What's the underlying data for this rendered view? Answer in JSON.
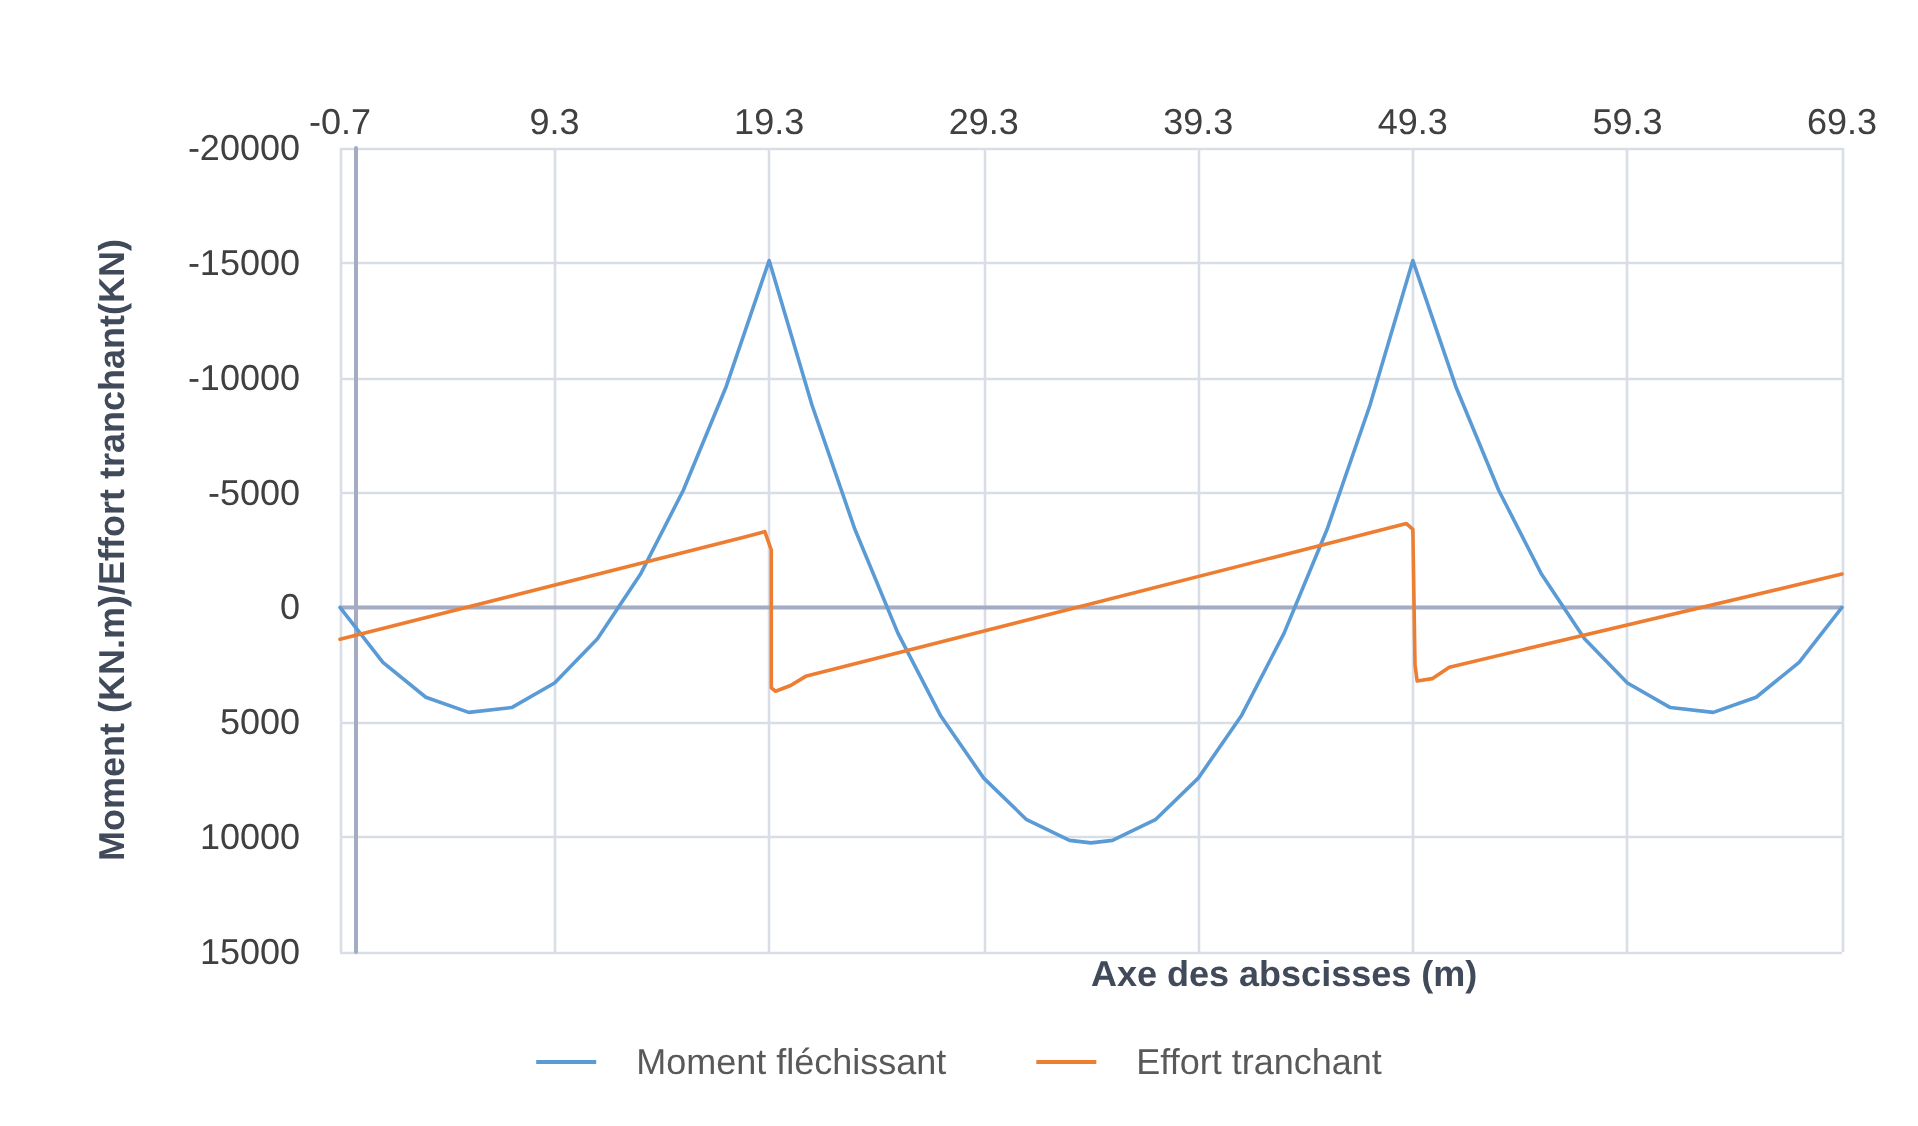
{
  "chart_data": {
    "type": "line",
    "xlabel": "Axe des abscisses (m)",
    "ylabel": "Moment (KN.m)/Effort tranchant(KN)",
    "xlim": [
      -0.7,
      69.3
    ],
    "xticks": [
      -0.7,
      9.3,
      19.3,
      29.3,
      39.3,
      49.3,
      59.3,
      69.3
    ],
    "ylim": [
      15000,
      -20000
    ],
    "yticks": [
      -20000,
      -15000,
      -10000,
      -5000,
      0,
      5000,
      10000,
      15000
    ],
    "grid": true,
    "legend": "bottom",
    "marker": "none",
    "line_style": "solid",
    "series": [
      {
        "name": "Moment fléchissant",
        "color": "#5b9bd5",
        "x": [
          -0.7,
          1.3,
          3.3,
          5.3,
          7.3,
          9.3,
          11.3,
          13.3,
          15.3,
          17.3,
          19.3,
          21.3,
          23.3,
          25.3,
          27.3,
          29.3,
          31.3,
          33.3,
          34.3,
          35.3,
          37.3,
          39.3,
          41.3,
          43.3,
          45.3,
          47.3,
          49.3,
          51.3,
          53.3,
          55.3,
          57.3,
          59.3,
          61.3,
          63.3,
          65.3,
          67.3,
          69.3
        ],
        "values": [
          0,
          2390,
          3910,
          4570,
          4360,
          3290,
          1360,
          -1440,
          -5100,
          -9620,
          -15100,
          -8800,
          -3390,
          1120,
          4730,
          7430,
          9240,
          10140,
          10250,
          10140,
          9240,
          7430,
          4730,
          1120,
          -3390,
          -8800,
          -15100,
          -9620,
          -5100,
          -1440,
          1360,
          3290,
          4360,
          4570,
          3910,
          2390,
          0
        ]
      },
      {
        "name": "Effort tranchant",
        "color": "#ed7d31",
        "x": [
          -0.7,
          18.3,
          19.1,
          19.4,
          19.4,
          19.6,
          20.3,
          21,
          49,
          49.3,
          49.4,
          49.5,
          50.2,
          51,
          69.3
        ],
        "values": [
          1390,
          -3100,
          -3300,
          -2500,
          3500,
          3650,
          3400,
          3000,
          -3650,
          -3400,
          2500,
          3200,
          3100,
          2600,
          -1450
        ]
      }
    ]
  }
}
